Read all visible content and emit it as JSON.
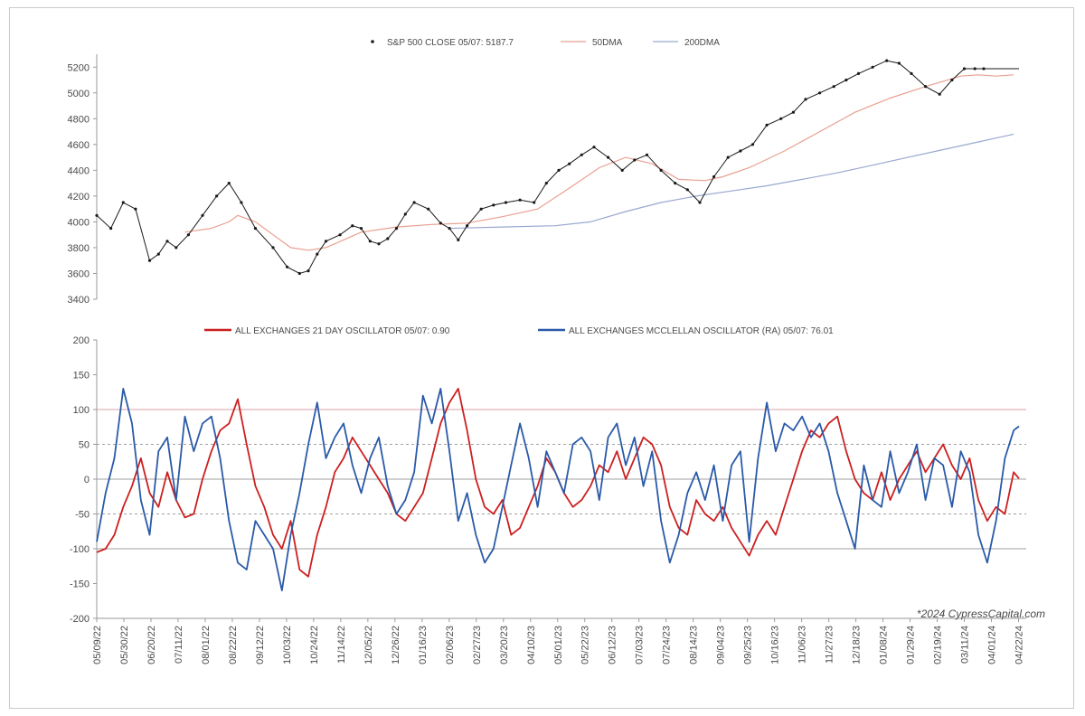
{
  "chart_data": [
    {
      "type": "line",
      "legend": [
        {
          "label": "S&P 500 CLOSE 05/07: 5187.7",
          "color": "#1a1a1a",
          "marker": "dot"
        },
        {
          "label": "50DMA",
          "color": "#e8a090",
          "marker": "line"
        },
        {
          "label": "200DMA",
          "color": "#9aa8d0",
          "marker": "line"
        }
      ],
      "legend_position": "top-center",
      "ylim": [
        3400,
        5300
      ],
      "yticks": [
        3400,
        3600,
        3800,
        4000,
        4200,
        4400,
        4600,
        4800,
        5000,
        5200
      ],
      "x_range": [
        0,
        523
      ],
      "series": [
        {
          "name": "S&P 500 CLOSE",
          "color": "#1a1a1a",
          "x": [
            0,
            8,
            15,
            22,
            30,
            35,
            40,
            45,
            52,
            60,
            68,
            75,
            82,
            90,
            100,
            108,
            115,
            120,
            125,
            130,
            138,
            145,
            150,
            155,
            160,
            165,
            170,
            175,
            180,
            188,
            195,
            200,
            205,
            210,
            218,
            225,
            232,
            240,
            248,
            255,
            262,
            268,
            275,
            282,
            290,
            298,
            305,
            312,
            320,
            328,
            335,
            342,
            350,
            358,
            365,
            372,
            380,
            388,
            395,
            402,
            410,
            418,
            425,
            432,
            440,
            448,
            455,
            462,
            470,
            478,
            485,
            492,
            498,
            503,
            508,
            512,
            516,
            520,
            523
          ],
          "values": [
            4050,
            3950,
            4150,
            4100,
            3700,
            3750,
            3850,
            3800,
            3900,
            4050,
            4200,
            4300,
            4150,
            3950,
            3800,
            3650,
            3600,
            3620,
            3750,
            3850,
            3900,
            3970,
            3950,
            3850,
            3830,
            3870,
            3950,
            4060,
            4150,
            4100,
            3990,
            3950,
            3860,
            3970,
            4100,
            4130,
            4150,
            4170,
            4150,
            4300,
            4400,
            4450,
            4520,
            4580,
            4500,
            4400,
            4480,
            4520,
            4400,
            4300,
            4250,
            4150,
            4350,
            4500,
            4550,
            4600,
            4750,
            4800,
            4850,
            4950,
            5000,
            5050,
            5100,
            5150,
            5200,
            5250,
            5230,
            5150,
            5050,
            4990,
            5100,
            5187.7,
            5187.7,
            5187.7,
            5187.7,
            5187.7,
            5187.7,
            5187.7,
            5187.7
          ]
        },
        {
          "name": "50DMA",
          "color": "#e8a090",
          "x": [
            50,
            65,
            75,
            80,
            90,
            100,
            110,
            120,
            130,
            140,
            150,
            170,
            190,
            210,
            230,
            250,
            270,
            285,
            300,
            315,
            330,
            345,
            355,
            370,
            390,
            410,
            430,
            450,
            470,
            490,
            500,
            510,
            520
          ],
          "values": [
            3920,
            3950,
            4000,
            4050,
            4000,
            3900,
            3800,
            3780,
            3800,
            3860,
            3920,
            3960,
            3980,
            3990,
            4040,
            4100,
            4280,
            4420,
            4500,
            4450,
            4330,
            4320,
            4350,
            4420,
            4550,
            4700,
            4850,
            4960,
            5050,
            5130,
            5140,
            5130,
            5140
          ]
        },
        {
          "name": "200DMA",
          "color": "#9aa8d0",
          "x": [
            200,
            230,
            260,
            280,
            300,
            320,
            340,
            360,
            380,
            400,
            420,
            440,
            460,
            480,
            500,
            510,
            520
          ],
          "values": [
            3950,
            3960,
            3970,
            4000,
            4080,
            4150,
            4200,
            4240,
            4280,
            4330,
            4380,
            4440,
            4500,
            4560,
            4620,
            4650,
            4680
          ]
        }
      ]
    },
    {
      "type": "line",
      "legend": [
        {
          "label": "ALL EXCHANGES 21 DAY OSCILLATOR 05/07: 0.90",
          "color": "#cc1f1f"
        },
        {
          "label": "ALL EXCHANGES MCCLELLAN OSCILLATOR (RA) 05/07: 76.01",
          "color": "#2a5aa8"
        }
      ],
      "legend_position": "top-center",
      "ylim": [
        -200,
        200
      ],
      "yticks": [
        -200,
        -150,
        -100,
        -50,
        0,
        50,
        100,
        150,
        200
      ],
      "reference_lines": [
        {
          "value": 100,
          "color": "#d9a0a8",
          "style": "solid"
        },
        {
          "value": 50,
          "color": "#a0a0a0",
          "style": "dashed"
        },
        {
          "value": 0,
          "color": "#a0a0a0",
          "style": "solid"
        },
        {
          "value": -50,
          "color": "#a0a0a0",
          "style": "dashed"
        },
        {
          "value": -100,
          "color": "#a0a0a0",
          "style": "solid"
        }
      ],
      "x_range": [
        0,
        523
      ],
      "x_tick_labels": [
        "05/09/22",
        "05/30/22",
        "06/20/22",
        "07/11/22",
        "08/01/22",
        "08/22/22",
        "09/12/22",
        "10/03/22",
        "10/24/22",
        "11/14/22",
        "12/05/22",
        "12/26/22",
        "01/16/23",
        "02/06/23",
        "02/27/23",
        "03/20/23",
        "04/10/23",
        "05/01/23",
        "05/22/23",
        "06/12/23",
        "07/03/23",
        "07/24/23",
        "08/14/23",
        "09/04/23",
        "09/25/23",
        "10/16/23",
        "11/06/23",
        "11/27/23",
        "12/18/23",
        "01/08/24",
        "01/29/24",
        "02/19/24",
        "03/11/24",
        "04/01/24",
        "04/22/24"
      ],
      "series": [
        {
          "name": "ALL EXCHANGES 21 DAY OSCILLATOR",
          "color": "#cc1f1f",
          "x": [
            0,
            5,
            10,
            15,
            20,
            25,
            30,
            35,
            40,
            45,
            50,
            55,
            60,
            65,
            70,
            75,
            80,
            85,
            90,
            95,
            100,
            105,
            110,
            115,
            120,
            125,
            130,
            135,
            140,
            145,
            150,
            155,
            160,
            165,
            170,
            175,
            180,
            185,
            190,
            195,
            200,
            205,
            210,
            215,
            220,
            225,
            230,
            235,
            240,
            245,
            250,
            255,
            260,
            265,
            270,
            275,
            280,
            285,
            290,
            295,
            300,
            305,
            310,
            315,
            320,
            325,
            330,
            335,
            340,
            345,
            350,
            355,
            360,
            365,
            370,
            375,
            380,
            385,
            390,
            395,
            400,
            405,
            410,
            415,
            420,
            425,
            430,
            435,
            440,
            445,
            450,
            455,
            460,
            465,
            470,
            475,
            480,
            485,
            490,
            495,
            500,
            505,
            510,
            515,
            520,
            523
          ],
          "values": [
            -105,
            -100,
            -80,
            -40,
            -10,
            30,
            -20,
            -40,
            10,
            -30,
            -55,
            -50,
            0,
            40,
            70,
            80,
            115,
            50,
            -10,
            -40,
            -80,
            -100,
            -60,
            -130,
            -140,
            -80,
            -40,
            10,
            30,
            60,
            40,
            20,
            0,
            -20,
            -50,
            -60,
            -40,
            -20,
            30,
            80,
            110,
            130,
            70,
            0,
            -40,
            -50,
            -30,
            -80,
            -70,
            -40,
            -10,
            30,
            10,
            -20,
            -40,
            -30,
            -10,
            20,
            10,
            40,
            0,
            30,
            60,
            50,
            20,
            -40,
            -70,
            -80,
            -30,
            -50,
            -60,
            -40,
            -70,
            -90,
            -110,
            -80,
            -60,
            -80,
            -40,
            0,
            40,
            70,
            60,
            80,
            90,
            40,
            0,
            -20,
            -30,
            10,
            -30,
            0,
            20,
            40,
            10,
            30,
            50,
            20,
            0,
            30,
            -30,
            -60,
            -40,
            -50,
            10,
            0.9
          ]
        },
        {
          "name": "ALL EXCHANGES MCCLELLAN OSCILLATOR (RA)",
          "color": "#2a5aa8",
          "x": [
            0,
            5,
            10,
            15,
            20,
            25,
            30,
            35,
            40,
            45,
            50,
            55,
            60,
            65,
            70,
            75,
            80,
            85,
            90,
            95,
            100,
            105,
            110,
            115,
            120,
            125,
            130,
            135,
            140,
            145,
            150,
            155,
            160,
            165,
            170,
            175,
            180,
            185,
            190,
            195,
            200,
            205,
            210,
            215,
            220,
            225,
            230,
            235,
            240,
            245,
            250,
            255,
            260,
            265,
            270,
            275,
            280,
            285,
            290,
            295,
            300,
            305,
            310,
            315,
            320,
            325,
            330,
            335,
            340,
            345,
            350,
            355,
            360,
            365,
            370,
            375,
            380,
            385,
            390,
            395,
            400,
            405,
            410,
            415,
            420,
            425,
            430,
            435,
            440,
            445,
            450,
            455,
            460,
            465,
            470,
            475,
            480,
            485,
            490,
            495,
            500,
            505,
            510,
            515,
            520,
            523
          ],
          "values": [
            -90,
            -20,
            30,
            130,
            80,
            -30,
            -80,
            40,
            60,
            -30,
            90,
            40,
            80,
            90,
            30,
            -60,
            -120,
            -130,
            -60,
            -80,
            -100,
            -160,
            -80,
            -20,
            50,
            110,
            30,
            60,
            80,
            20,
            -20,
            30,
            60,
            -10,
            -50,
            -30,
            10,
            120,
            80,
            130,
            40,
            -60,
            -20,
            -80,
            -120,
            -100,
            -40,
            20,
            80,
            30,
            -40,
            40,
            10,
            -20,
            50,
            60,
            40,
            -30,
            60,
            80,
            20,
            60,
            -10,
            40,
            -60,
            -120,
            -80,
            -20,
            10,
            -30,
            20,
            -60,
            20,
            40,
            -90,
            30,
            110,
            40,
            80,
            70,
            90,
            60,
            80,
            40,
            -20,
            -60,
            -100,
            20,
            -30,
            -40,
            40,
            -20,
            10,
            50,
            -30,
            30,
            20,
            -40,
            40,
            10,
            -80,
            -120,
            -60,
            30,
            70,
            76.01
          ]
        }
      ]
    }
  ],
  "watermark": "*2024 CypressCapital.com"
}
